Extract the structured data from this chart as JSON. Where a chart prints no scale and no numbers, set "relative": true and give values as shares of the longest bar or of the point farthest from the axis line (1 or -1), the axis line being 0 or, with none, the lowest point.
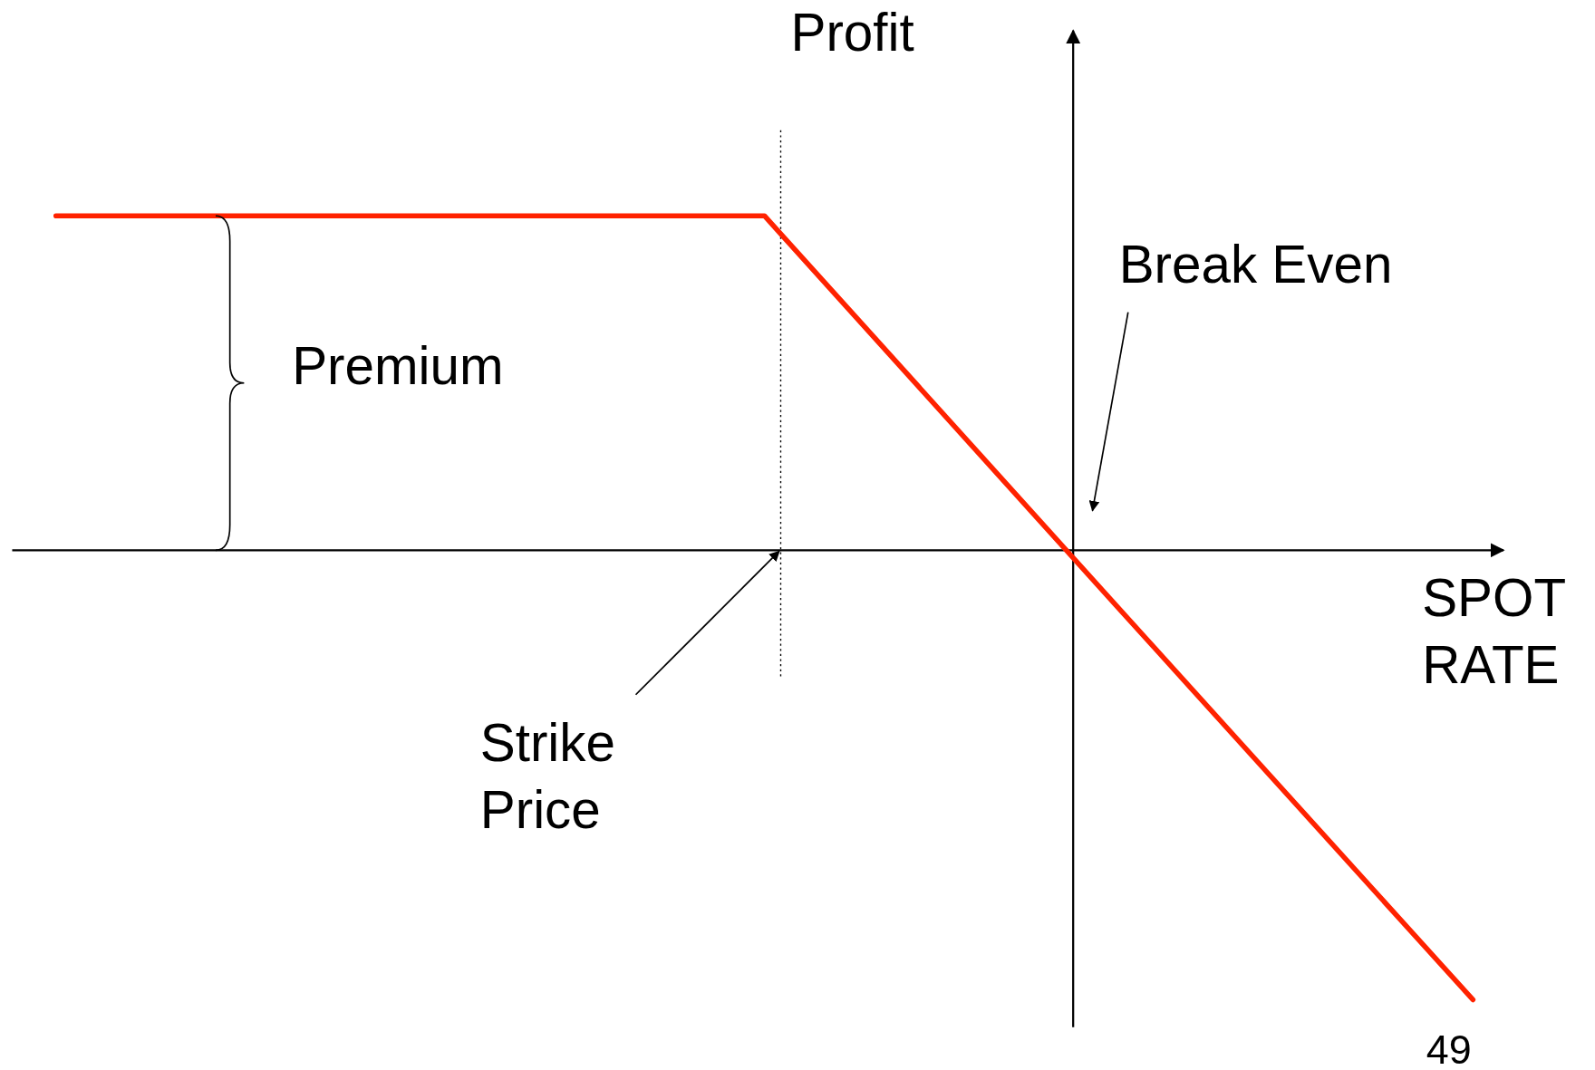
{
  "chart_data": {
    "type": "line",
    "relative": true,
    "xlabel": "SPOT RATE",
    "ylabel": "Profit",
    "categories": [
      null,
      null,
      null,
      null,
      null
    ],
    "series": [
      {
        "color": "#ff2200",
        "values": [
          0.744,
          0.744,
          0.744,
          -0.129,
          -1
        ]
      }
    ],
    "annotations": [
      "Premium",
      "Break Even",
      "Strike Price",
      "49"
    ]
  }
}
